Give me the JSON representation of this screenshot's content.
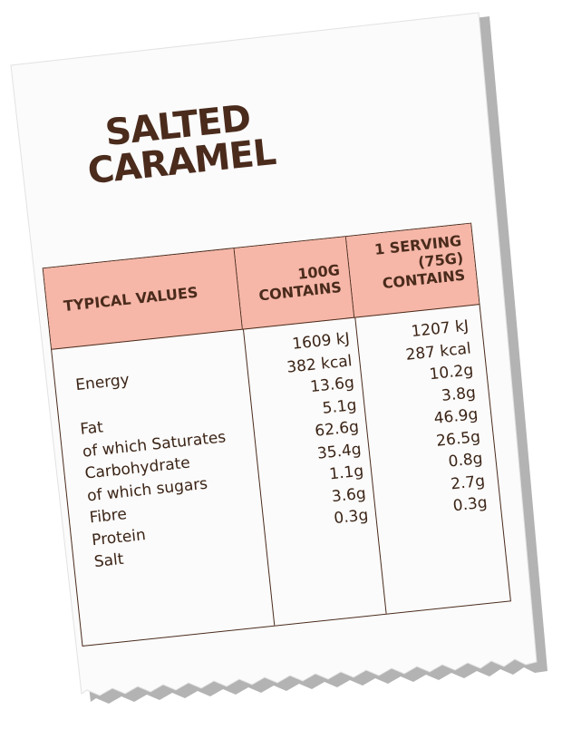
{
  "product": {
    "title_line1": "SALTED",
    "title_line2": "CARAMEL"
  },
  "colors": {
    "header_fill": "#f6b7a8",
    "text": "#4a2b1c",
    "shadow": "#9a9a9a"
  },
  "table": {
    "headers": {
      "typical": "TYPICAL VALUES",
      "per100_line1": "100G",
      "per100_line2": "CONTAINS",
      "serving_line1": "1 SERVING",
      "serving_line2": "(75G)",
      "serving_line3": "CONTAINS"
    },
    "nutrients": [
      "Energy",
      "Fat",
      "of which Saturates",
      "Carbohydrate",
      "of which sugars",
      "Fibre",
      "Protein",
      "Salt"
    ],
    "per100": [
      "1609 kJ",
      "382 kcal",
      "13.6g",
      "5.1g",
      "62.6g",
      "35.4g",
      "1.1g",
      "3.6g",
      "0.3g"
    ],
    "serving": [
      "1207 kJ",
      "287 kcal",
      "10.2g",
      "3.8g",
      "46.9g",
      "26.5g",
      "0.8g",
      "2.7g",
      "0.3g"
    ]
  }
}
